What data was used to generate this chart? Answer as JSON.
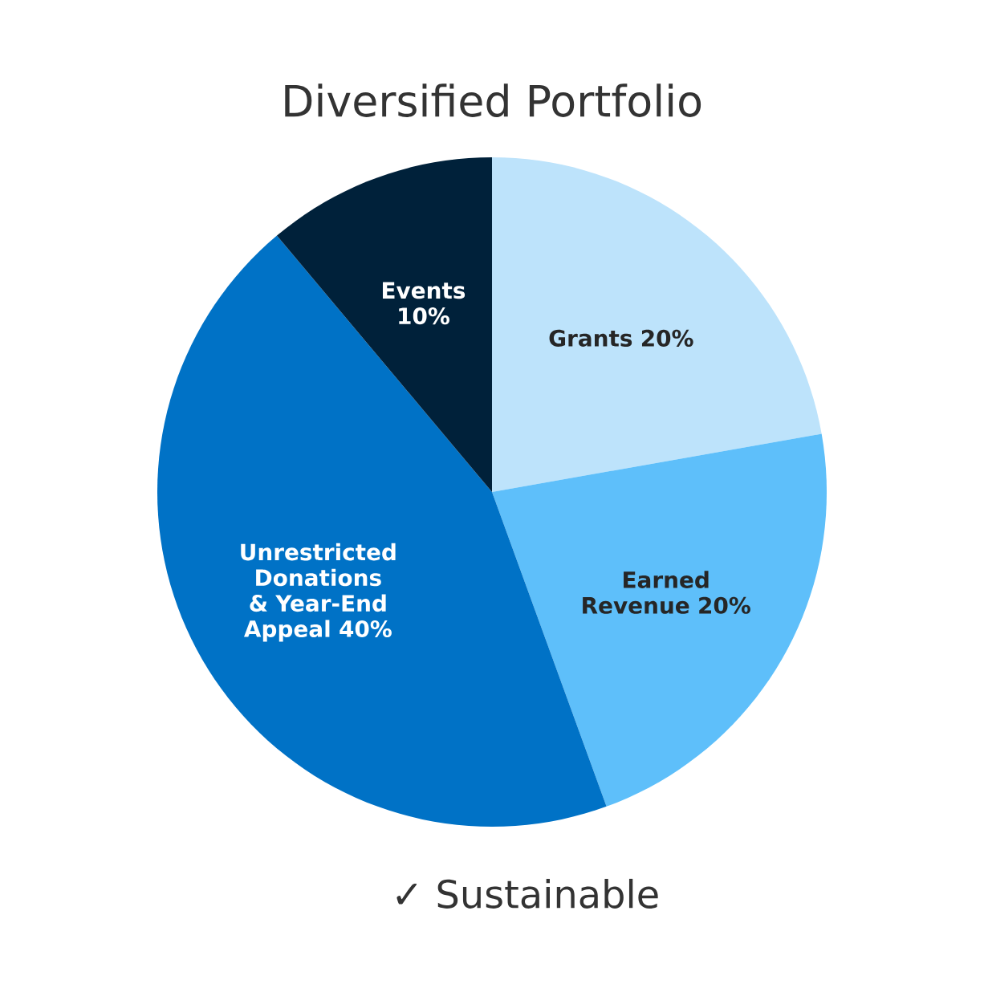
{
  "chart_data": {
    "type": "pie",
    "title": "Diversified Portfolio",
    "categories": [
      "Grants",
      "Earned Revenue",
      "Unrestricted Donations & Year-End Appeal",
      "Events"
    ],
    "values": [
      20,
      20,
      40,
      10
    ],
    "value_labels": [
      "20%",
      "20%",
      "40%",
      "10%"
    ],
    "colors": [
      "#bde3fb",
      "#5ebffa",
      "#0072c6",
      "#00213a"
    ],
    "annotations": [
      "✓ Sustainable"
    ]
  }
}
